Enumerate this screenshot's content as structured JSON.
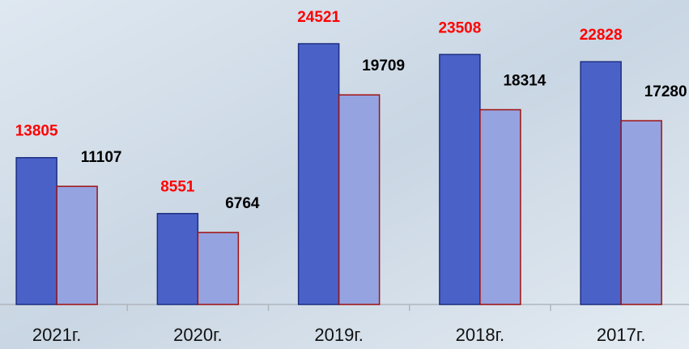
{
  "chart_data": {
    "type": "bar",
    "categories": [
      "2021г.",
      "2020г.",
      "2019г.",
      "2018г.",
      "2017г."
    ],
    "series": [
      {
        "color": "#4a62c8",
        "label_color": "#ff0000",
        "values": [
          13805,
          8551,
          24521,
          23508,
          22828
        ]
      },
      {
        "color": "#95a4e0",
        "label_color": "#000000",
        "border": "#a01010",
        "values": [
          11107,
          6764,
          19709,
          18314,
          17280
        ]
      }
    ]
  }
}
